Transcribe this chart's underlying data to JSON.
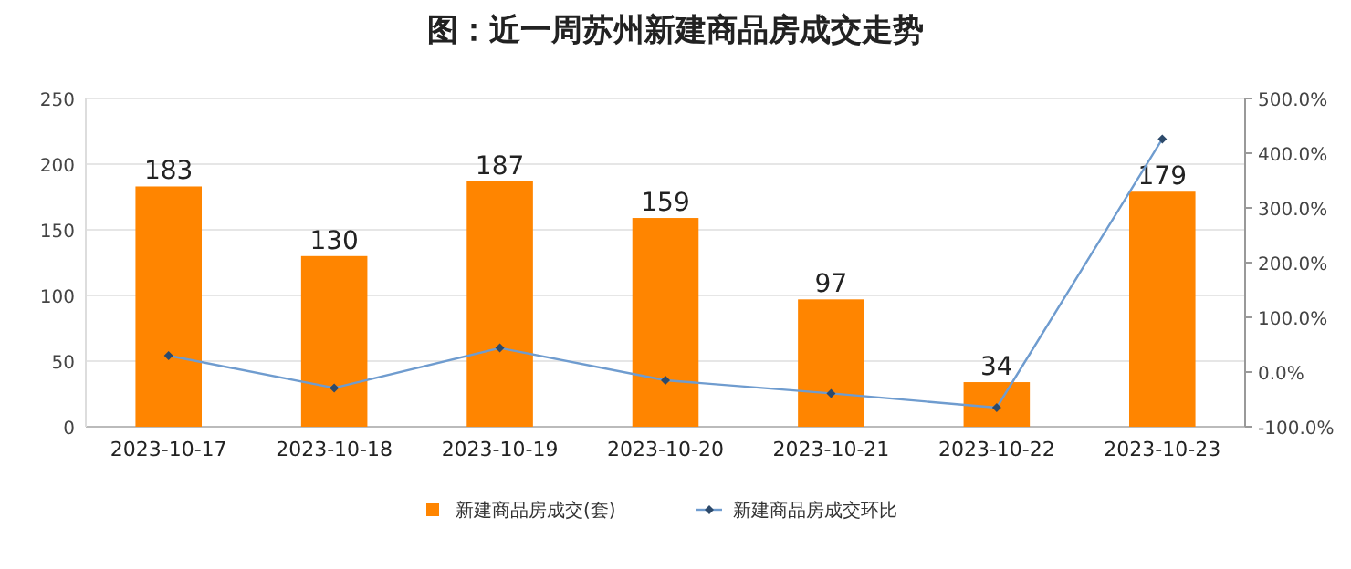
{
  "chart_data": {
    "type": "bar",
    "title": "图：近一周苏州新建商品房成交走势",
    "categories": [
      "2023-10-17",
      "2023-10-18",
      "2023-10-19",
      "2023-10-20",
      "2023-10-21",
      "2023-10-22",
      "2023-10-23"
    ],
    "series": [
      {
        "name": "新建商品房成交(套)",
        "color": "#ff8500",
        "values": [
          183,
          130,
          187,
          159,
          97,
          34,
          179
        ],
        "value_labels": [
          "183",
          "130",
          "187",
          "159",
          "97",
          "34",
          "179"
        ]
      },
      {
        "name": "新建商品房成交环比",
        "type": "line",
        "axis": "y2",
        "marker": "diamond",
        "color": "#6f9ccf",
        "values": [
          30,
          -29,
          44,
          -15,
          -39,
          -65,
          426
        ]
      }
    ],
    "ylim": [
      0,
      250
    ],
    "yticks": [
      0,
      50,
      100,
      150,
      200,
      250
    ],
    "y2lim": [
      -100,
      500
    ],
    "y2ticks": [
      {
        "value": -100,
        "label": "-100.0%"
      },
      {
        "value": 0,
        "label": "0.0%"
      },
      {
        "value": 100,
        "label": "100.0%"
      },
      {
        "value": 200,
        "label": "200.0%"
      },
      {
        "value": 300,
        "label": "300.0%"
      },
      {
        "value": 400,
        "label": "400.0%"
      },
      {
        "value": 500,
        "label": "500.0%"
      }
    ],
    "grid": "y",
    "legend": "bottom"
  }
}
